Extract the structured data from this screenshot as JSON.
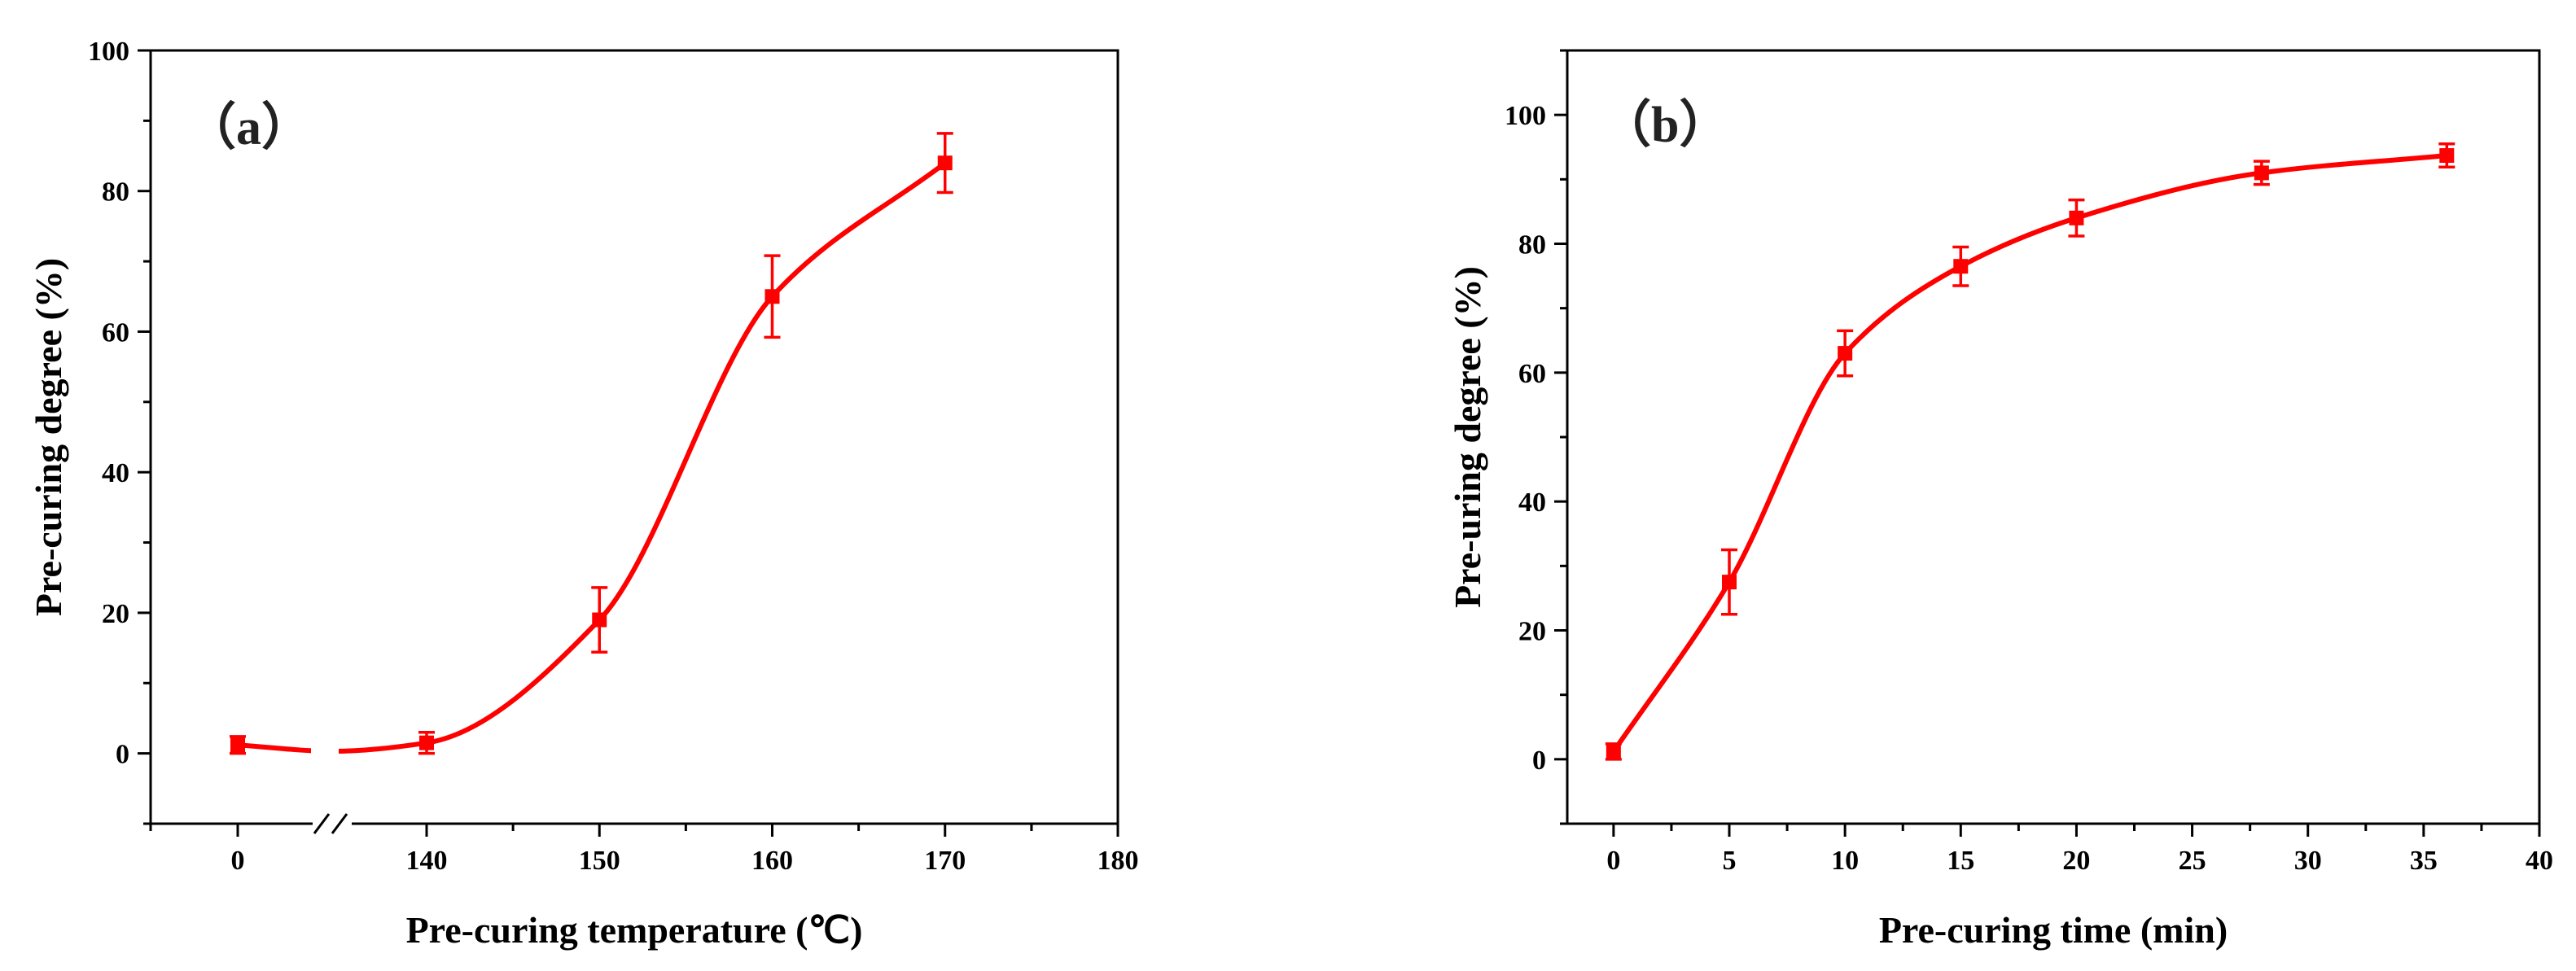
{
  "chart_data": [
    {
      "type": "line",
      "panel_label": "（a）",
      "title": "",
      "xlabel": "Pre-curing temperature (℃)",
      "ylabel": "Pre-curing degree (%)",
      "x": [
        0,
        140,
        150,
        160,
        170
      ],
      "values": [
        1.2,
        1.5,
        19,
        65,
        84
      ],
      "errors": [
        1.2,
        1.5,
        4.6,
        5.8,
        4.2
      ],
      "xticks": [
        "0",
        "140",
        "150",
        "160",
        "170",
        "180"
      ],
      "yticks": [
        0,
        20,
        40,
        60,
        80,
        100
      ],
      "ylim": [
        -10,
        100
      ],
      "axis_break": "between 0 and 140",
      "color": "#ff0000",
      "grid": false
    },
    {
      "type": "line",
      "panel_label": "（b）",
      "title": "",
      "xlabel": "Pre-curing time (min)",
      "ylabel": "Pre-uring degree (%)",
      "x": [
        0,
        5,
        10,
        15,
        20,
        28,
        36
      ],
      "values": [
        1.2,
        27.5,
        63,
        76.5,
        84,
        91,
        93.7
      ],
      "errors": [
        1.2,
        5,
        3.5,
        3,
        2.8,
        1.8,
        1.8
      ],
      "xticks": [
        0,
        5,
        10,
        15,
        20,
        25,
        30,
        35,
        40
      ],
      "yticks": [
        0,
        20,
        40,
        60,
        80,
        100
      ],
      "xlim": [
        -2,
        40
      ],
      "ylim": [
        -10,
        110
      ],
      "color": "#ff0000",
      "grid": false
    }
  ]
}
